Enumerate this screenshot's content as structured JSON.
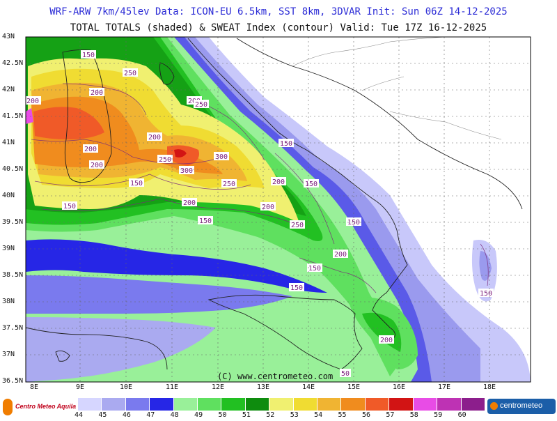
{
  "header": {
    "line1": "WRF-ARW 7km/45lev  Data: ICON-EU 6.5km, SST 8km, 3DVAR  Init: Sun 06Z 14-12-2025",
    "line2": "TOTAL TOTALS (shaded) & SWEAT Index (contour)  Valid: Tue 17Z 16-12-2025"
  },
  "credit": "(C) www.centrometeo.com",
  "axes": {
    "lon_labels": [
      "8E",
      "9E",
      "10E",
      "11E",
      "12E",
      "13E",
      "14E",
      "15E",
      "16E",
      "17E",
      "18E"
    ],
    "lat_labels": [
      "43N",
      "42.5N",
      "42N",
      "41.5N",
      "41N",
      "40.5N",
      "40N",
      "39.5N",
      "39N",
      "38.5N",
      "38N",
      "37.5N",
      "37N",
      "36.5N"
    ]
  },
  "contours": {
    "labels": [
      "150",
      "250",
      "200",
      "200",
      "200",
      "250",
      "200",
      "200",
      "150",
      "150",
      "200",
      "250",
      "300",
      "300",
      "250",
      "200",
      "150",
      "200",
      "150",
      "200",
      "150",
      "250",
      "150",
      "200",
      "150",
      "150",
      "150",
      "200",
      "50"
    ]
  },
  "colorbar": {
    "labels": [
      "44",
      "45",
      "46",
      "47",
      "48",
      "49",
      "50",
      "51",
      "52",
      "53",
      "54",
      "55",
      "56",
      "57",
      "58",
      "59",
      "60"
    ],
    "colors": [
      "#d6d6ff",
      "#aaaaf0",
      "#7a7aee",
      "#2626e6",
      "#99f099",
      "#5fe05f",
      "#22c022",
      "#0e8c0e",
      "#f0f070",
      "#f0dc32",
      "#f0b432",
      "#f08c1e",
      "#f05a28",
      "#d21414",
      "#e84ce6",
      "#be32b4",
      "#8c1e8c"
    ]
  },
  "logos": {
    "left": "Centro Meteo Aquila",
    "right": "centrometeo"
  }
}
